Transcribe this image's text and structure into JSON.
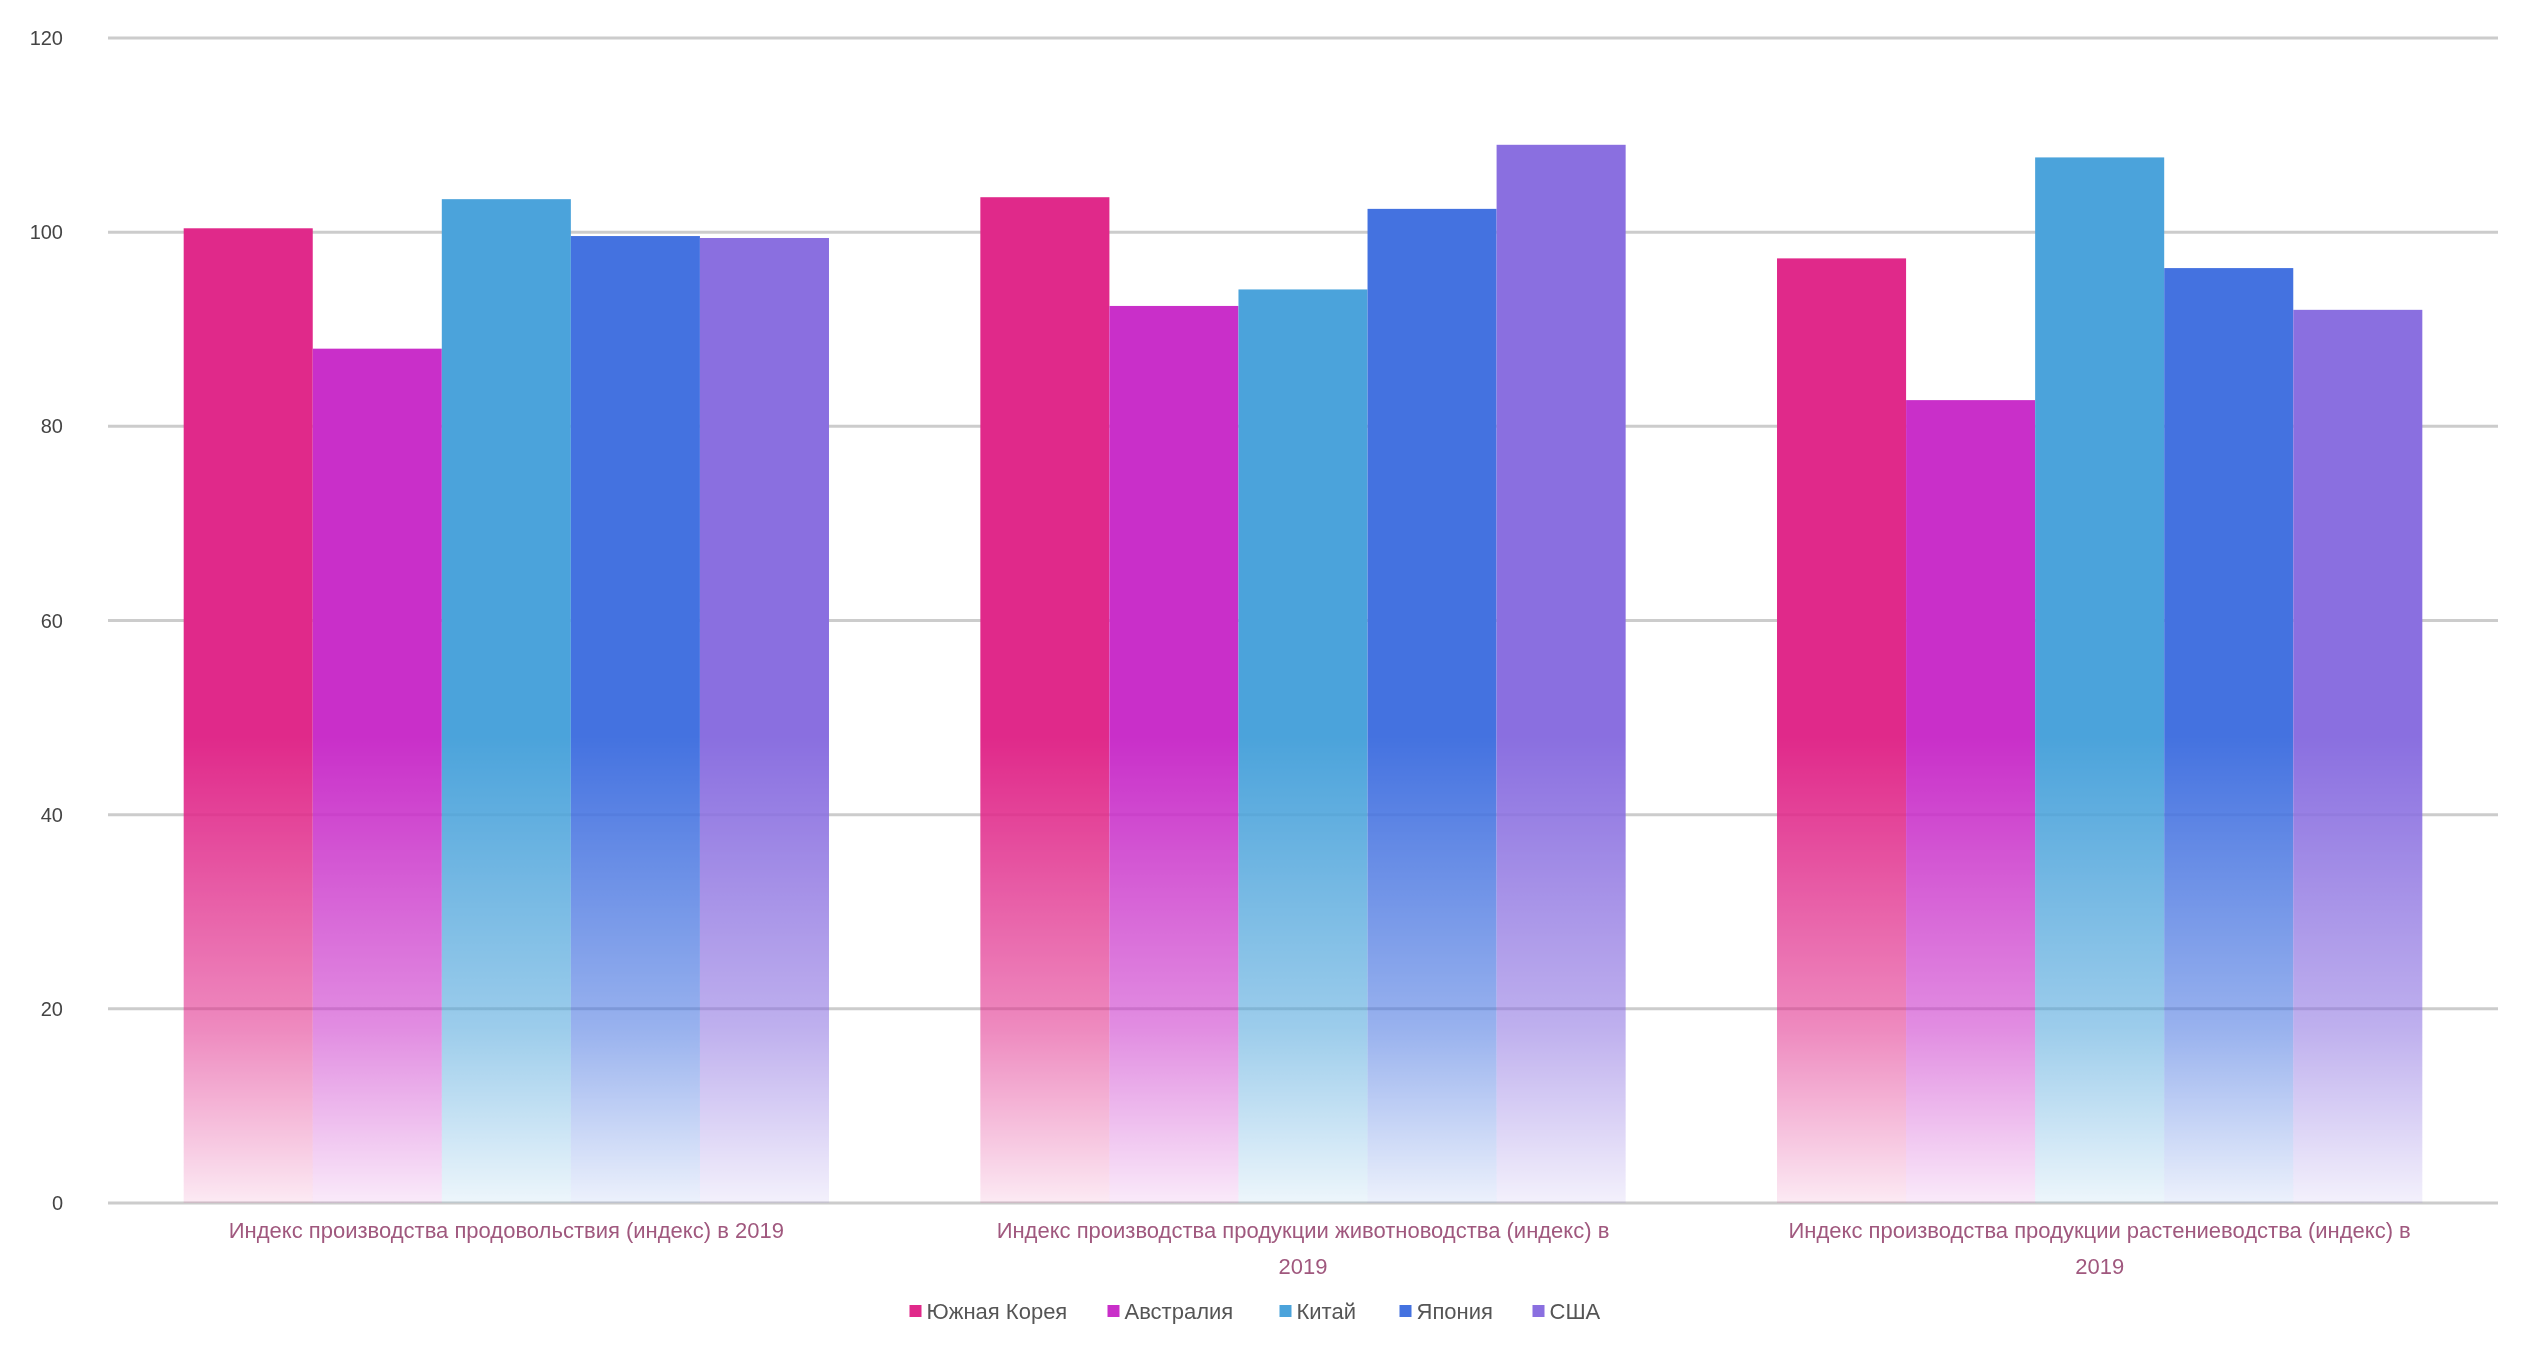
{
  "chart_data": {
    "type": "bar",
    "categories": [
      "Индекс производства продовольствия (индекс) в 2019",
      "Индекс производства продукции животноводства (индекс) в 2019",
      "Индекс производства продукции растениеводства (индекс) в 2019"
    ],
    "series": [
      {
        "name": "Южная Корея",
        "color": "#e0298a",
        "values": [
          100.4,
          103.6,
          97.3
        ]
      },
      {
        "name": "Австралия",
        "color": "#c92fc9",
        "values": [
          88.0,
          92.4,
          82.7
        ]
      },
      {
        "name": "Китай",
        "color": "#4ba3db",
        "values": [
          103.4,
          94.1,
          107.7
        ]
      },
      {
        "name": "Япония",
        "color": "#4472e0",
        "values": [
          99.6,
          102.4,
          96.3
        ]
      },
      {
        "name": "США",
        "color": "#8a6fe0",
        "values": [
          99.4,
          109.0,
          92.0
        ]
      }
    ],
    "ylim": [
      0,
      120
    ],
    "yticks": [
      0,
      20,
      40,
      60,
      80,
      100,
      120
    ],
    "grid": "y",
    "legend": "bottom"
  }
}
